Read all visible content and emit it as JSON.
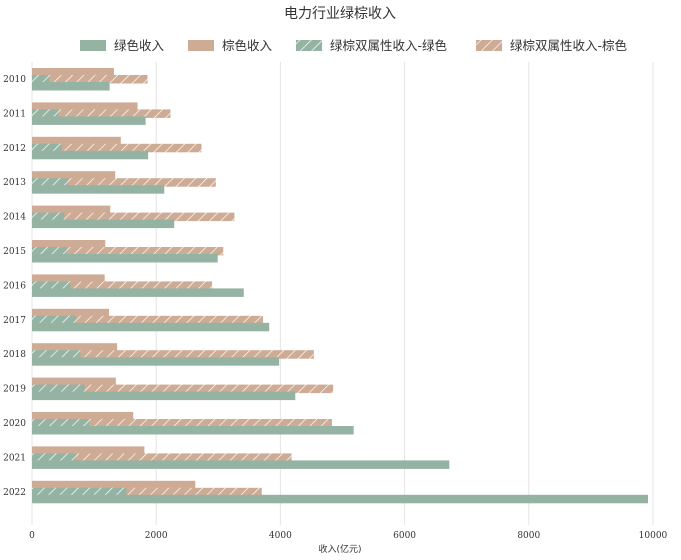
{
  "chart_data": {
    "type": "bar",
    "orientation": "horizontal",
    "title": "电力行业绿棕收入",
    "xlabel": "收入(亿元)",
    "ylabel": "",
    "xlim": [
      0,
      10500
    ],
    "x_ticks": [
      0,
      2000,
      4000,
      6000,
      8000,
      10000
    ],
    "grid": "vertical",
    "legend_position": "top",
    "categories": [
      "2010",
      "2011",
      "2012",
      "2013",
      "2014",
      "2015",
      "2016",
      "2017",
      "2018",
      "2019",
      "2020",
      "2021",
      "2022"
    ],
    "series": [
      {
        "name": "绿色收入",
        "color": "#95b3a3",
        "pattern": "solid",
        "values": [
          1250,
          1830,
          1870,
          2130,
          2290,
          2990,
          3410,
          3820,
          3980,
          4240,
          5180,
          6720,
          9920
        ]
      },
      {
        "name": "棕色收入",
        "color": "#cdab94",
        "pattern": "solid",
        "values": [
          1320,
          1700,
          1430,
          1340,
          1260,
          1180,
          1170,
          1240,
          1370,
          1350,
          1630,
          1810,
          2630
        ]
      },
      {
        "name": "绿棕双属性收入-绿色",
        "color": "#95b3a3",
        "pattern": "hatch",
        "values": [
          280,
          430,
          480,
          580,
          520,
          560,
          620,
          710,
          780,
          850,
          920,
          700,
          1520
        ]
      },
      {
        "name": "绿棕双属性收入-棕色",
        "color": "#cdab94",
        "pattern": "hatch",
        "values": [
          1860,
          2230,
          2730,
          2960,
          3260,
          3080,
          2900,
          3720,
          4540,
          4850,
          4830,
          4180,
          3700
        ]
      }
    ]
  }
}
